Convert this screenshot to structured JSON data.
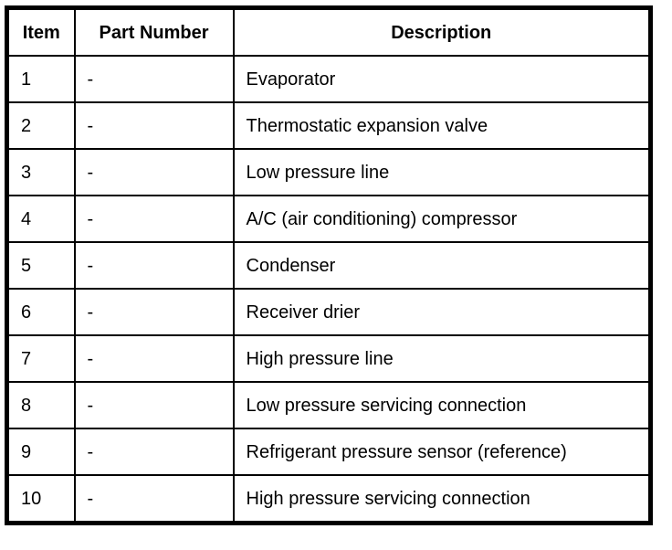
{
  "colors": {
    "background": "#ffffff",
    "border": "#000000",
    "text": "#000000"
  },
  "table": {
    "columns": [
      {
        "key": "item",
        "label": "Item"
      },
      {
        "key": "part_number",
        "label": "Part Number"
      },
      {
        "key": "description",
        "label": "Description"
      }
    ],
    "rows": [
      {
        "item": "1",
        "part_number": "-",
        "description": "Evaporator"
      },
      {
        "item": "2",
        "part_number": "-",
        "description": "Thermostatic expansion valve"
      },
      {
        "item": "3",
        "part_number": "-",
        "description": "Low pressure line"
      },
      {
        "item": "4",
        "part_number": "-",
        "description": "A/C (air conditioning) compressor"
      },
      {
        "item": "5",
        "part_number": "-",
        "description": "Condenser"
      },
      {
        "item": "6",
        "part_number": "-",
        "description": "Receiver drier"
      },
      {
        "item": "7",
        "part_number": "-",
        "description": "High pressure line"
      },
      {
        "item": "8",
        "part_number": "-",
        "description": "Low pressure servicing connection"
      },
      {
        "item": "9",
        "part_number": "-",
        "description": "Refrigerant pressure sensor (reference)"
      },
      {
        "item": "10",
        "part_number": "-",
        "description": "High pressure servicing connection"
      }
    ]
  }
}
